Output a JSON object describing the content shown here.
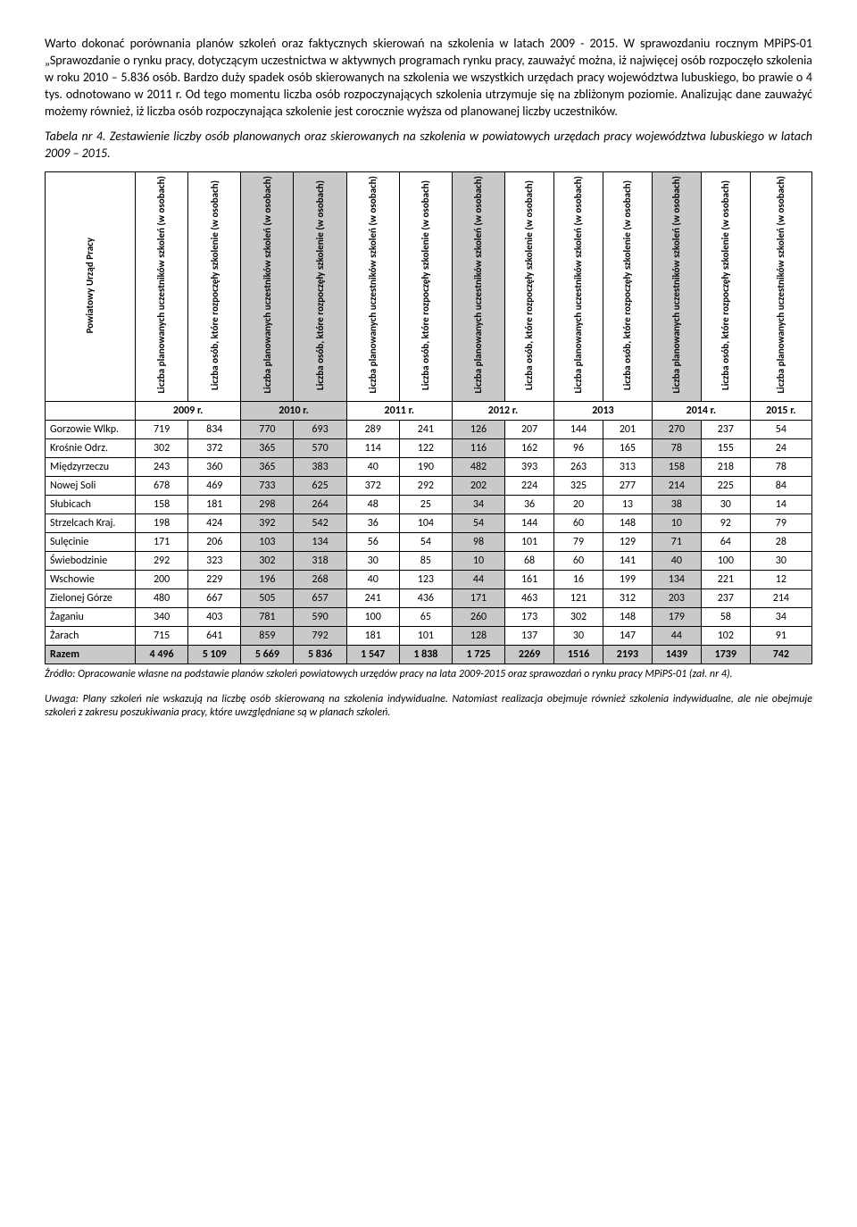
{
  "para1": "Warto dokonać porównania planów szkoleń oraz faktycznych skierowań na szkolenia w latach 2009 - 2015. W sprawozdaniu rocznym MPiPS-01 „Sprawozdanie o rynku pracy, dotyczącym uczestnictwa w aktywnych programach rynku pracy, zauważyć można, iż najwięcej osób rozpoczęło szkolenia w roku 2010 – 5.836 osób. Bardzo duży spadek osób skierowanych na szkolenia we wszystkich urzędach pracy województwa lubuskiego, bo prawie o 4 tys. odnotowano w 2011 r.  Od tego momentu liczba osób rozpoczynających szkolenia utrzymuje się na zbliżonym poziomie. Analizując dane zauważyć możemy również, iż liczba osób rozpoczynająca szkolenie jest corocznie wyższa od planowanej liczby uczestników.",
  "table_caption": "Tabela nr 4. Zestawienie liczby osób planowanych oraz skierowanych  na szkolenia w powiatowych urzędach pracy województwa lubuskiego w latach 2009 – 2015.",
  "headers": {
    "pup": "Powiatowy Urząd Pracy",
    "plan": "Liczba planowanych uczestników szkoleń\n(w osobach)",
    "start": "Liczba osób, które rozpoczęły szkolenie\n(w osobach)"
  },
  "years": [
    "2009 r.",
    "2010 r.",
    "2011 r.",
    "2012 r.",
    "2013",
    "2014 r.",
    "2015 r."
  ],
  "rows": [
    {
      "name": "Gorzowie Wlkp.",
      "vals": [
        "719",
        "834",
        "770",
        "693",
        "289",
        "241",
        "126",
        "207",
        "144",
        "201",
        "270",
        "237",
        "54"
      ]
    },
    {
      "name": "Krośnie Odrz.",
      "vals": [
        "302",
        "372",
        "365",
        "570",
        "114",
        "122",
        "116",
        "162",
        "96",
        "165",
        "78",
        "155",
        "24"
      ]
    },
    {
      "name": "Międzyrzeczu",
      "vals": [
        "243",
        "360",
        "365",
        "383",
        "40",
        "190",
        "482",
        "393",
        "263",
        "313",
        "158",
        "218",
        "78"
      ]
    },
    {
      "name": "Nowej Soli",
      "vals": [
        "678",
        "469",
        "733",
        "625",
        "372",
        "292",
        "202",
        "224",
        "325",
        "277",
        "214",
        "225",
        "84"
      ]
    },
    {
      "name": "Słubicach",
      "vals": [
        "158",
        "181",
        "298",
        "264",
        "48",
        "25",
        "34",
        "36",
        "20",
        "13",
        "38",
        "30",
        "14"
      ]
    },
    {
      "name": "Strzelcach Kraj.",
      "vals": [
        "198",
        "424",
        "392",
        "542",
        "36",
        "104",
        "54",
        "144",
        "60",
        "148",
        "10",
        "92",
        "79"
      ]
    },
    {
      "name": "Sulęcinie",
      "vals": [
        "171",
        "206",
        "103",
        "134",
        "56",
        "54",
        "98",
        "101",
        "79",
        "129",
        "71",
        "64",
        "28"
      ]
    },
    {
      "name": "Świebodzinie",
      "vals": [
        "292",
        "323",
        "302",
        "318",
        "30",
        "85",
        "10",
        "68",
        "60",
        "141",
        "40",
        "100",
        "30"
      ]
    },
    {
      "name": "Wschowie",
      "vals": [
        "200",
        "229",
        "196",
        "268",
        "40",
        "123",
        "44",
        "161",
        "16",
        "199",
        "134",
        "221",
        "12"
      ]
    },
    {
      "name": "Zielonej Górze",
      "vals": [
        "480",
        "667",
        "505",
        "657",
        "241",
        "436",
        "171",
        "463",
        "121",
        "312",
        "203",
        "237",
        "214"
      ]
    },
    {
      "name": "Żaganiu",
      "vals": [
        "340",
        "403",
        "781",
        "590",
        "100",
        "65",
        "260",
        "173",
        "302",
        "148",
        "179",
        "58",
        "34"
      ]
    },
    {
      "name": "Żarach",
      "vals": [
        "715",
        "641",
        "859",
        "792",
        "181",
        "101",
        "128",
        "137",
        "30",
        "147",
        "44",
        "102",
        "91"
      ]
    }
  ],
  "total": {
    "name": "Razem",
    "vals": [
      "4 496",
      "5 109",
      "5 669",
      "5 836",
      "1 547",
      "1 838",
      "1 725",
      "2269",
      "1516",
      "2193",
      "1439",
      "1739",
      "742"
    ]
  },
  "footnote1": "Źródło: Opracowanie własne na podstawie planów szkoleń powiatowych urzędów pracy na lata 2009-2015 oraz sprawozdań o rynku pracy MPiPS-01 (zał. nr 4).",
  "footnote2": "Uwaga: Plany szkoleń nie wskazują na liczbę osób skierowaną na szkolenia indywidualne. Natomiast realizacja obejmuje również szkolenia indywidualne, ale nie obejmuje szkoleń z zakresu poszukiwania pracy, które uwzględniane są w planach szkoleń.",
  "shaded_cols": [
    2,
    3,
    6,
    10
  ]
}
